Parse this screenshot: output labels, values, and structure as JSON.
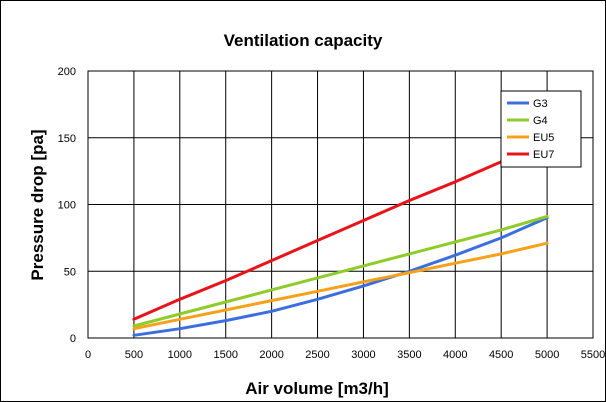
{
  "chart_data": {
    "type": "line",
    "title": "Ventilation capacity",
    "xlabel": "Air volume [m3/h]",
    "ylabel": "Pressure drop [pa]",
    "xlim": [
      0,
      5500
    ],
    "ylim": [
      0,
      200
    ],
    "xticks": [
      0,
      500,
      1000,
      1500,
      2000,
      2500,
      3000,
      3500,
      4000,
      4500,
      5000,
      5500
    ],
    "yticks": [
      0,
      50,
      100,
      150,
      200
    ],
    "grid": true,
    "legend_position": "top-right",
    "x": [
      500,
      1000,
      1500,
      2000,
      2500,
      3000,
      3500,
      4000,
      4500,
      5000
    ],
    "series": [
      {
        "name": "G3",
        "color": "#3b6fe0",
        "values": [
          2,
          7,
          13,
          20,
          29,
          39,
          50,
          62,
          75,
          90
        ]
      },
      {
        "name": "G4",
        "color": "#8fcc2a",
        "values": [
          9,
          18,
          27,
          36,
          45,
          54,
          63,
          72,
          81,
          91
        ]
      },
      {
        "name": "EU5",
        "color": "#f5a11a",
        "values": [
          7,
          14,
          21,
          28,
          35,
          42,
          49,
          56,
          63,
          71
        ]
      },
      {
        "name": "EU7",
        "color": "#e8141a",
        "values": [
          14,
          29,
          43,
          58,
          73,
          88,
          103,
          117,
          132,
          147
        ]
      }
    ]
  }
}
